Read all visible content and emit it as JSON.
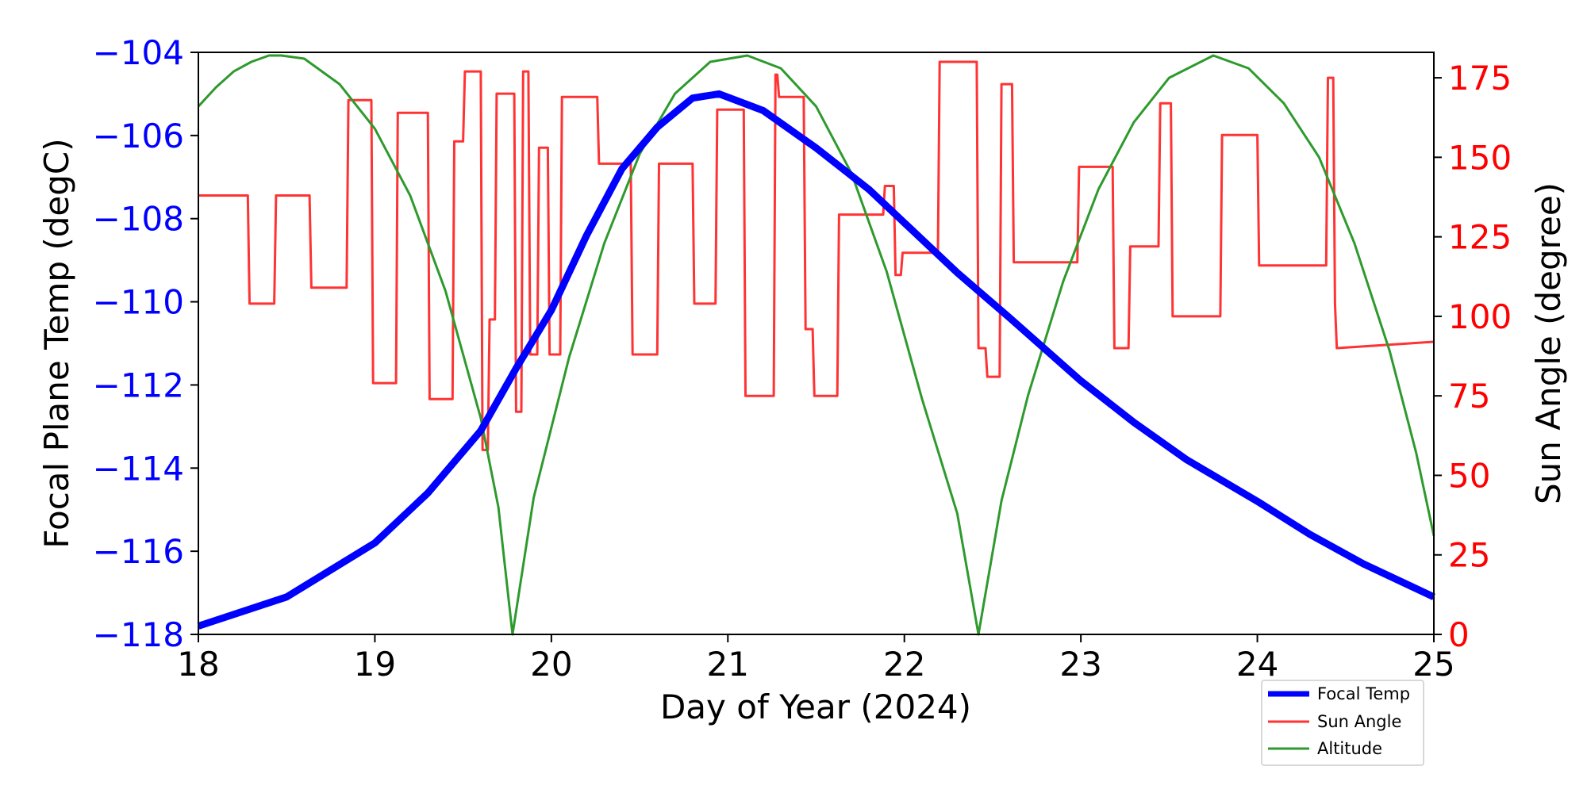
{
  "chart_data": {
    "type": "line",
    "x": {
      "label": "Day of Year (2024)",
      "lim": [
        18,
        25
      ],
      "ticks": [
        "18",
        "19",
        "20",
        "21",
        "22",
        "23",
        "24",
        "25"
      ]
    },
    "y_left": {
      "label": "Focal Plane Temp (degC)",
      "lim": [
        -118,
        -104
      ],
      "ticks": [
        "−104",
        "−106",
        "−108",
        "−110",
        "−112",
        "−114",
        "−116",
        "−118"
      ],
      "color": "#0000ff"
    },
    "y_right": {
      "label": "Sun Angle (degree)",
      "lim": [
        0,
        183
      ],
      "ticks": [
        "175",
        "150",
        "125",
        "100",
        "75",
        "50",
        "25",
        "0"
      ],
      "color": "#ff0000"
    },
    "grid": false,
    "legend": {
      "position": "bottom-right, below axes"
    },
    "series": [
      {
        "name": "Focal Temp",
        "axis": "left",
        "color": "#0000ff",
        "x": [
          18.0,
          18.5,
          19.0,
          19.3,
          19.6,
          19.8,
          20.0,
          20.2,
          20.4,
          20.6,
          20.8,
          20.95,
          21.2,
          21.5,
          21.8,
          22.0,
          22.3,
          22.6,
          23.0,
          23.3,
          23.6,
          24.0,
          24.3,
          24.6,
          25.0
        ],
        "y": [
          -117.8,
          -117.1,
          -115.8,
          -114.6,
          -113.1,
          -111.6,
          -110.2,
          -108.4,
          -106.8,
          -105.8,
          -105.1,
          -105.0,
          -105.4,
          -106.3,
          -107.3,
          -108.1,
          -109.3,
          -110.4,
          -111.9,
          -112.9,
          -113.8,
          -114.8,
          -115.6,
          -116.3,
          -117.1
        ]
      },
      {
        "name": "Sun Angle",
        "axis": "right",
        "color": "#ff3333",
        "x": [
          18.0,
          18.28,
          18.29,
          18.43,
          18.44,
          18.63,
          18.64,
          18.84,
          18.85,
          18.98,
          18.99,
          19.12,
          19.13,
          19.3,
          19.31,
          19.44,
          19.45,
          19.5,
          19.51,
          19.6,
          19.61,
          19.64,
          19.65,
          19.68,
          19.69,
          19.79,
          19.8,
          19.83,
          19.84,
          19.87,
          19.88,
          19.92,
          19.93,
          19.98,
          19.99,
          20.05,
          20.06,
          20.26,
          20.27,
          20.45,
          20.46,
          20.6,
          20.61,
          20.8,
          20.81,
          20.93,
          20.94,
          21.09,
          21.1,
          21.26,
          21.27,
          21.28,
          21.29,
          21.43,
          21.44,
          21.48,
          21.49,
          21.62,
          21.63,
          21.88,
          21.89,
          21.94,
          21.95,
          21.98,
          21.99,
          22.19,
          22.2,
          22.41,
          22.42,
          22.46,
          22.47,
          22.54,
          22.55,
          22.61,
          22.62,
          22.98,
          22.99,
          23.18,
          23.19,
          23.27,
          23.28,
          23.44,
          23.45,
          23.51,
          23.52,
          23.79,
          23.8,
          24.0,
          24.01,
          24.39,
          24.4,
          24.43,
          24.44,
          24.45,
          25.0
        ],
        "y": [
          138,
          138,
          104,
          104,
          138,
          138,
          109,
          109,
          168,
          168,
          79,
          79,
          164,
          164,
          74,
          74,
          155,
          155,
          177,
          177,
          58,
          58,
          99,
          99,
          170,
          170,
          70,
          70,
          177,
          177,
          88,
          88,
          153,
          153,
          88,
          88,
          169,
          169,
          148,
          148,
          88,
          88,
          148,
          148,
          104,
          104,
          165,
          165,
          75,
          75,
          176,
          176,
          169,
          169,
          96,
          96,
          75,
          75,
          132,
          132,
          141,
          141,
          113,
          113,
          120,
          120,
          180,
          180,
          90,
          90,
          81,
          81,
          173,
          173,
          117,
          117,
          147,
          147,
          90,
          90,
          122,
          122,
          167,
          167,
          100,
          100,
          157,
          157,
          116,
          116,
          175,
          175,
          104,
          90,
          92
        ]
      },
      {
        "name": "Altitude",
        "axis": "right",
        "color": "#2e9a2e",
        "x": [
          18.0,
          18.1,
          18.2,
          18.3,
          18.4,
          18.47,
          18.6,
          18.8,
          19.0,
          19.2,
          19.4,
          19.6,
          19.7,
          19.78,
          19.9,
          20.1,
          20.3,
          20.5,
          20.7,
          20.9,
          21.11,
          21.3,
          21.5,
          21.7,
          21.9,
          22.1,
          22.3,
          22.42,
          22.55,
          22.7,
          22.9,
          23.1,
          23.3,
          23.5,
          23.75,
          23.95,
          24.15,
          24.35,
          24.55,
          24.75,
          24.9,
          25.0
        ],
        "y": [
          166,
          172,
          177,
          180,
          182,
          182,
          181,
          173,
          159,
          138,
          108,
          68,
          40,
          0,
          43,
          87,
          123,
          151,
          170,
          180,
          182,
          178,
          166,
          145,
          114,
          74,
          38,
          0,
          42,
          75,
          111,
          140,
          161,
          175,
          182,
          178,
          167,
          150,
          123,
          89,
          57,
          31
        ]
      }
    ]
  }
}
